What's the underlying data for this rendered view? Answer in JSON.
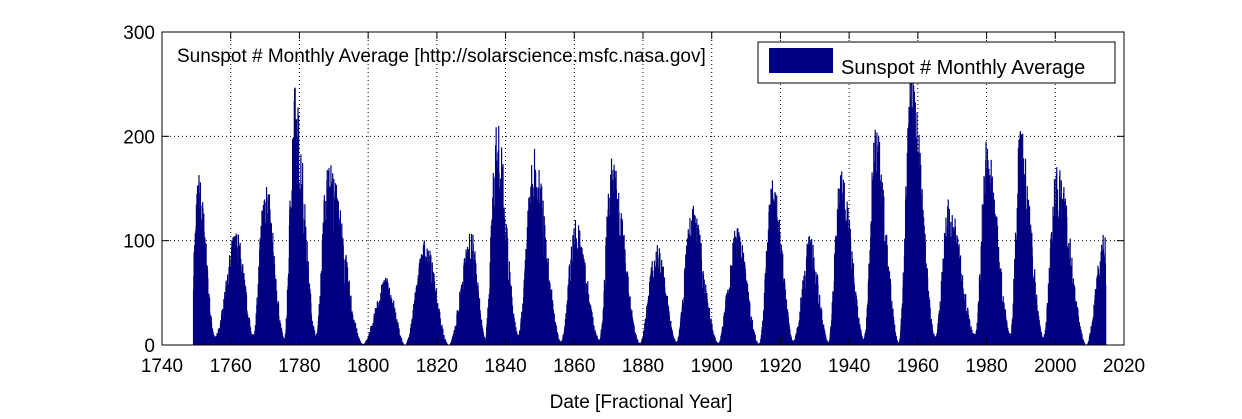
{
  "chart_data": {
    "type": "bar",
    "title_inside": "Sunspot # Monthly Average [http://solarscience.msfc.nasa.gov]",
    "xlabel": "Date [Fractional Year]",
    "ylabel": "",
    "xlim": [
      1740,
      2020
    ],
    "ylim": [
      0,
      300
    ],
    "x_ticks": [
      1740,
      1760,
      1780,
      1800,
      1820,
      1840,
      1860,
      1880,
      1900,
      1920,
      1940,
      1960,
      1980,
      2000,
      2020
    ],
    "y_ticks": [
      0,
      100,
      200,
      300
    ],
    "grid": true,
    "legend_position": "top-right",
    "series": [
      {
        "name": "Sunspot # Monthly Average",
        "color": "#000080",
        "data_range": [
          1749.0,
          2014.5
        ],
        "cycle_peaks": [
          {
            "year": 1750.5,
            "value": 160
          },
          {
            "year": 1761.5,
            "value": 107
          },
          {
            "year": 1769.7,
            "value": 160
          },
          {
            "year": 1778.4,
            "value": 240
          },
          {
            "year": 1788.1,
            "value": 175
          },
          {
            "year": 1805.2,
            "value": 62
          },
          {
            "year": 1816.4,
            "value": 97
          },
          {
            "year": 1829.9,
            "value": 105
          },
          {
            "year": 1837.2,
            "value": 208
          },
          {
            "year": 1848.1,
            "value": 180
          },
          {
            "year": 1860.1,
            "value": 117
          },
          {
            "year": 1870.6,
            "value": 176
          },
          {
            "year": 1883.9,
            "value": 95
          },
          {
            "year": 1894.1,
            "value": 130
          },
          {
            "year": 1907.0,
            "value": 110
          },
          {
            "year": 1917.6,
            "value": 155
          },
          {
            "year": 1928.4,
            "value": 100
          },
          {
            "year": 1937.4,
            "value": 165
          },
          {
            "year": 1947.5,
            "value": 202
          },
          {
            "year": 1957.9,
            "value": 253
          },
          {
            "year": 1968.9,
            "value": 135
          },
          {
            "year": 1979.9,
            "value": 188
          },
          {
            "year": 1989.6,
            "value": 200
          },
          {
            "year": 2000.3,
            "value": 170
          },
          {
            "year": 2014.0,
            "value": 102
          }
        ],
        "cycle_minima": [
          {
            "year": 1755.2,
            "value": 8
          },
          {
            "year": 1766.5,
            "value": 10
          },
          {
            "year": 1775.5,
            "value": 6
          },
          {
            "year": 1784.7,
            "value": 10
          },
          {
            "year": 1798.3,
            "value": 1
          },
          {
            "year": 1810.6,
            "value": 0
          },
          {
            "year": 1823.3,
            "value": 0
          },
          {
            "year": 1833.9,
            "value": 7
          },
          {
            "year": 1843.5,
            "value": 10
          },
          {
            "year": 1856.0,
            "value": 3
          },
          {
            "year": 1867.2,
            "value": 5
          },
          {
            "year": 1878.9,
            "value": 2
          },
          {
            "year": 1889.6,
            "value": 3
          },
          {
            "year": 1901.7,
            "value": 2
          },
          {
            "year": 1913.6,
            "value": 1
          },
          {
            "year": 1923.6,
            "value": 4
          },
          {
            "year": 1933.8,
            "value": 3
          },
          {
            "year": 1944.2,
            "value": 7
          },
          {
            "year": 1954.3,
            "value": 2
          },
          {
            "year": 1964.9,
            "value": 8
          },
          {
            "year": 1976.5,
            "value": 10
          },
          {
            "year": 1986.8,
            "value": 11
          },
          {
            "year": 1996.4,
            "value": 8
          },
          {
            "year": 2008.9,
            "value": 0
          }
        ]
      }
    ]
  }
}
